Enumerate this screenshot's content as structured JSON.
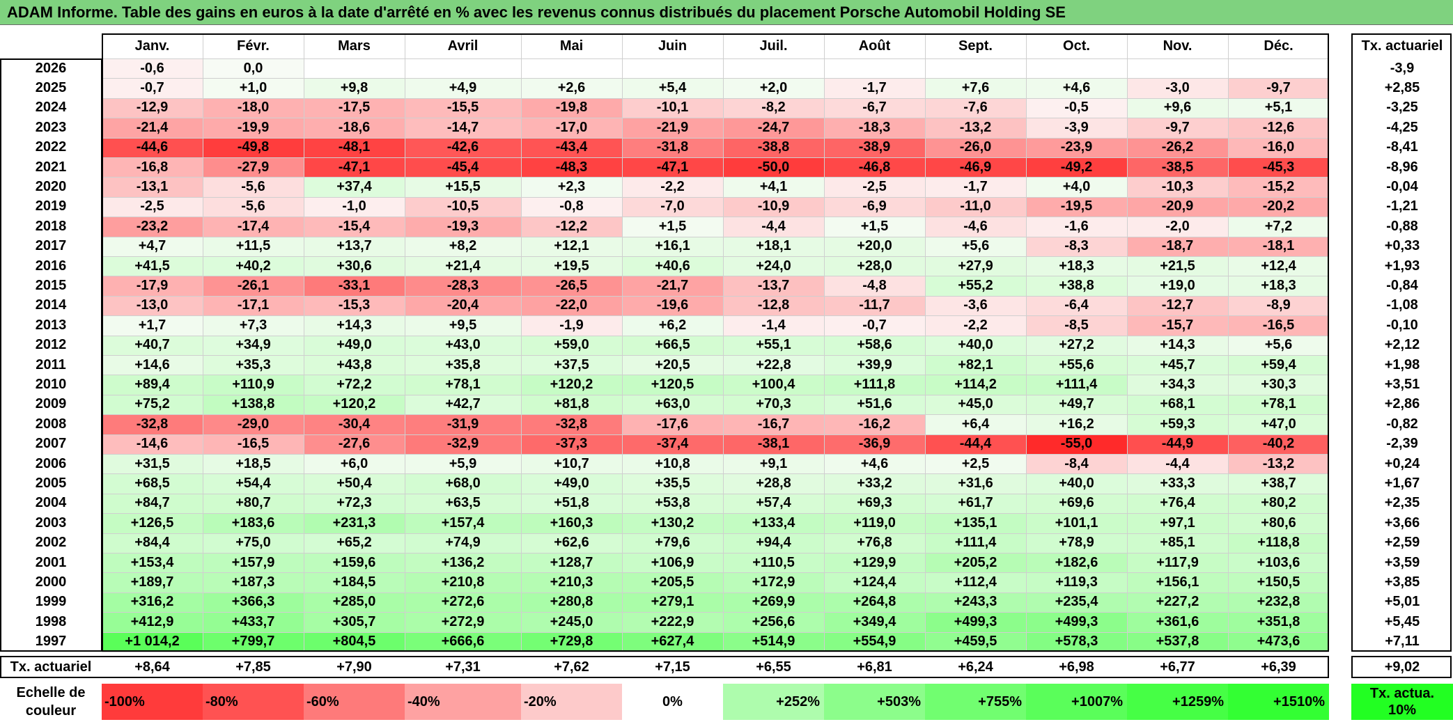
{
  "title": "ADAM Informe. Table des gains en euros à la date d'arrêté en % avec les revenus connus distribués du placement Porsche Automobil Holding SE",
  "chart_data": {
    "type": "heatmap",
    "title": "ADAM Informe. Table des gains en euros à la date d'arrêté en % avec les revenus connus distribués du placement Porsche Automobil Holding SE",
    "columns": [
      "Janv.",
      "Févr.",
      "Mars",
      "Avril",
      "Mai",
      "Juin",
      "Juil.",
      "Août",
      "Sept.",
      "Oct.",
      "Nov.",
      "Déc."
    ],
    "side_header": "Tx. actuariel",
    "rows": [
      {
        "year": "2026",
        "values": [
          "-0,6",
          "0,0",
          "",
          "",
          "",
          "",
          "",
          "",
          "",
          "",
          "",
          ""
        ],
        "tx": "-3,9"
      },
      {
        "year": "2025",
        "values": [
          "-0,7",
          "+1,0",
          "+9,8",
          "+4,9",
          "+2,6",
          "+5,4",
          "+2,0",
          "-1,7",
          "+7,6",
          "+4,6",
          "-3,0",
          "-9,7"
        ],
        "tx": "+2,85"
      },
      {
        "year": "2024",
        "values": [
          "-12,9",
          "-18,0",
          "-17,5",
          "-15,5",
          "-19,8",
          "-10,1",
          "-8,2",
          "-6,7",
          "-7,6",
          "-0,5",
          "+9,6",
          "+5,1"
        ],
        "tx": "-3,25"
      },
      {
        "year": "2023",
        "values": [
          "-21,4",
          "-19,9",
          "-18,6",
          "-14,7",
          "-17,0",
          "-21,9",
          "-24,7",
          "-18,3",
          "-13,2",
          "-3,9",
          "-9,7",
          "-12,6"
        ],
        "tx": "-4,25"
      },
      {
        "year": "2022",
        "values": [
          "-44,6",
          "-49,8",
          "-48,1",
          "-42,6",
          "-43,4",
          "-31,8",
          "-38,8",
          "-38,9",
          "-26,0",
          "-23,9",
          "-26,2",
          "-16,0"
        ],
        "tx": "-8,41"
      },
      {
        "year": "2021",
        "values": [
          "-16,8",
          "-27,9",
          "-47,1",
          "-45,4",
          "-48,3",
          "-47,1",
          "-50,0",
          "-46,8",
          "-46,9",
          "-49,2",
          "-38,5",
          "-45,3"
        ],
        "tx": "-8,96"
      },
      {
        "year": "2020",
        "values": [
          "-13,1",
          "-5,6",
          "+37,4",
          "+15,5",
          "+2,3",
          "-2,2",
          "+4,1",
          "-2,5",
          "-1,7",
          "+4,0",
          "-10,3",
          "-15,2"
        ],
        "tx": "-0,04"
      },
      {
        "year": "2019",
        "values": [
          "-2,5",
          "-5,6",
          "-1,0",
          "-10,5",
          "-0,8",
          "-7,0",
          "-10,9",
          "-6,9",
          "-11,0",
          "-19,5",
          "-20,9",
          "-20,2"
        ],
        "tx": "-1,21"
      },
      {
        "year": "2018",
        "values": [
          "-23,2",
          "-17,4",
          "-15,4",
          "-19,3",
          "-12,2",
          "+1,5",
          "-4,4",
          "+1,5",
          "-4,6",
          "-1,6",
          "-2,0",
          "+7,2"
        ],
        "tx": "-0,88"
      },
      {
        "year": "2017",
        "values": [
          "+4,7",
          "+11,5",
          "+13,7",
          "+8,2",
          "+12,1",
          "+16,1",
          "+18,1",
          "+20,0",
          "+5,6",
          "-8,3",
          "-18,7",
          "-18,1"
        ],
        "tx": "+0,33"
      },
      {
        "year": "2016",
        "values": [
          "+41,5",
          "+40,2",
          "+30,6",
          "+21,4",
          "+19,5",
          "+40,6",
          "+24,0",
          "+28,0",
          "+27,9",
          "+18,3",
          "+21,5",
          "+12,4"
        ],
        "tx": "+1,93"
      },
      {
        "year": "2015",
        "values": [
          "-17,9",
          "-26,1",
          "-33,1",
          "-28,3",
          "-26,5",
          "-21,7",
          "-13,7",
          "-4,8",
          "+55,2",
          "+38,8",
          "+19,0",
          "+18,3"
        ],
        "tx": "-0,84"
      },
      {
        "year": "2014",
        "values": [
          "-13,0",
          "-17,1",
          "-15,3",
          "-20,4",
          "-22,0",
          "-19,6",
          "-12,8",
          "-11,7",
          "-3,6",
          "-6,4",
          "-12,7",
          "-8,9"
        ],
        "tx": "-1,08"
      },
      {
        "year": "2013",
        "values": [
          "+1,7",
          "+7,3",
          "+14,3",
          "+9,5",
          "-1,9",
          "+6,2",
          "-1,4",
          "-0,7",
          "-2,2",
          "-8,5",
          "-15,7",
          "-16,5"
        ],
        "tx": "-0,10"
      },
      {
        "year": "2012",
        "values": [
          "+40,7",
          "+34,9",
          "+49,0",
          "+43,0",
          "+59,0",
          "+66,5",
          "+55,1",
          "+58,6",
          "+40,0",
          "+27,2",
          "+14,3",
          "+5,6"
        ],
        "tx": "+2,12"
      },
      {
        "year": "2011",
        "values": [
          "+14,6",
          "+35,3",
          "+43,8",
          "+35,8",
          "+37,5",
          "+20,5",
          "+22,8",
          "+39,9",
          "+82,1",
          "+55,6",
          "+45,7",
          "+59,4"
        ],
        "tx": "+1,98"
      },
      {
        "year": "2010",
        "values": [
          "+89,4",
          "+110,9",
          "+72,2",
          "+78,1",
          "+120,2",
          "+120,5",
          "+100,4",
          "+111,8",
          "+114,2",
          "+111,4",
          "+34,3",
          "+30,3"
        ],
        "tx": "+3,51"
      },
      {
        "year": "2009",
        "values": [
          "+75,2",
          "+138,8",
          "+120,2",
          "+42,7",
          "+81,8",
          "+63,0",
          "+70,3",
          "+51,6",
          "+45,0",
          "+49,7",
          "+68,1",
          "+78,1"
        ],
        "tx": "+2,86"
      },
      {
        "year": "2008",
        "values": [
          "-32,8",
          "-29,0",
          "-30,4",
          "-31,9",
          "-32,8",
          "-17,6",
          "-16,7",
          "-16,2",
          "+6,4",
          "+16,2",
          "+59,3",
          "+47,0"
        ],
        "tx": "-0,82"
      },
      {
        "year": "2007",
        "values": [
          "-14,6",
          "-16,5",
          "-27,6",
          "-32,9",
          "-37,3",
          "-37,4",
          "-38,1",
          "-36,9",
          "-44,4",
          "-55,0",
          "-44,9",
          "-40,2"
        ],
        "tx": "-2,39"
      },
      {
        "year": "2006",
        "values": [
          "+31,5",
          "+18,5",
          "+6,0",
          "+5,9",
          "+10,7",
          "+10,8",
          "+9,1",
          "+4,6",
          "+2,5",
          "-8,4",
          "-4,4",
          "-13,2"
        ],
        "tx": "+0,24"
      },
      {
        "year": "2005",
        "values": [
          "+68,5",
          "+54,4",
          "+50,4",
          "+68,0",
          "+49,0",
          "+35,5",
          "+28,8",
          "+33,2",
          "+31,6",
          "+40,0",
          "+33,3",
          "+38,7"
        ],
        "tx": "+1,67"
      },
      {
        "year": "2004",
        "values": [
          "+84,7",
          "+80,7",
          "+72,3",
          "+63,5",
          "+51,8",
          "+53,8",
          "+57,4",
          "+69,3",
          "+61,7",
          "+69,6",
          "+76,4",
          "+80,2"
        ],
        "tx": "+2,35"
      },
      {
        "year": "2003",
        "values": [
          "+126,5",
          "+183,6",
          "+231,3",
          "+157,4",
          "+160,3",
          "+130,2",
          "+133,4",
          "+119,0",
          "+135,1",
          "+101,1",
          "+97,1",
          "+80,6"
        ],
        "tx": "+3,66"
      },
      {
        "year": "2002",
        "values": [
          "+84,4",
          "+75,0",
          "+65,2",
          "+74,9",
          "+62,6",
          "+79,6",
          "+94,4",
          "+76,8",
          "+111,4",
          "+78,9",
          "+85,1",
          "+118,8"
        ],
        "tx": "+2,59"
      },
      {
        "year": "2001",
        "values": [
          "+153,4",
          "+157,9",
          "+159,6",
          "+136,2",
          "+128,7",
          "+106,9",
          "+110,5",
          "+129,9",
          "+205,2",
          "+182,6",
          "+117,9",
          "+103,6"
        ],
        "tx": "+3,59"
      },
      {
        "year": "2000",
        "values": [
          "+189,7",
          "+187,3",
          "+184,5",
          "+210,8",
          "+210,3",
          "+205,5",
          "+172,9",
          "+124,4",
          "+112,4",
          "+119,3",
          "+156,1",
          "+150,5"
        ],
        "tx": "+3,85"
      },
      {
        "year": "1999",
        "values": [
          "+316,2",
          "+366,3",
          "+285,0",
          "+272,6",
          "+280,8",
          "+279,1",
          "+269,9",
          "+264,8",
          "+243,3",
          "+235,4",
          "+227,2",
          "+232,8"
        ],
        "tx": "+5,01"
      },
      {
        "year": "1998",
        "values": [
          "+412,9",
          "+433,7",
          "+305,7",
          "+272,9",
          "+245,0",
          "+222,9",
          "+256,6",
          "+349,4",
          "+499,3",
          "+499,3",
          "+361,6",
          "+351,8"
        ],
        "tx": "+5,45"
      },
      {
        "year": "1997",
        "values": [
          "+1 014,2",
          "+799,7",
          "+804,5",
          "+666,6",
          "+729,8",
          "+627,4",
          "+514,9",
          "+554,9",
          "+459,5",
          "+578,3",
          "+537,8",
          "+473,6"
        ],
        "tx": "+7,11"
      }
    ],
    "footer": {
      "label": "Tx. actuariel",
      "values": [
        "+8,64",
        "+7,85",
        "+7,90",
        "+7,31",
        "+7,62",
        "+7,15",
        "+6,55",
        "+6,81",
        "+6,24",
        "+6,98",
        "+6,77",
        "+6,39"
      ],
      "tx": "+9,02"
    },
    "legend": {
      "label": "Echelle de couleur",
      "stops": [
        {
          "text": "-100%",
          "value": -100
        },
        {
          "text": "-80%",
          "value": -80
        },
        {
          "text": "-60%",
          "value": -60
        },
        {
          "text": "-40%",
          "value": -40
        },
        {
          "text": "-20%",
          "value": -20
        },
        {
          "text": "0%",
          "value": 0
        },
        {
          "text": "+252%",
          "value": 252
        },
        {
          "text": "+503%",
          "value": 503
        },
        {
          "text": "+755%",
          "value": 755
        },
        {
          "text": "+1007%",
          "value": 1007
        },
        {
          "text": "+1259%",
          "value": 1259
        },
        {
          "text": "+1510%",
          "value": 1510
        }
      ],
      "tx_label": "Tx. actua. 10%"
    },
    "colors": {
      "negative_max": "#ff2a2a",
      "neutral": "#ffffff",
      "positive_max": "#00ff00",
      "title_bg": "#7fd27f"
    }
  }
}
